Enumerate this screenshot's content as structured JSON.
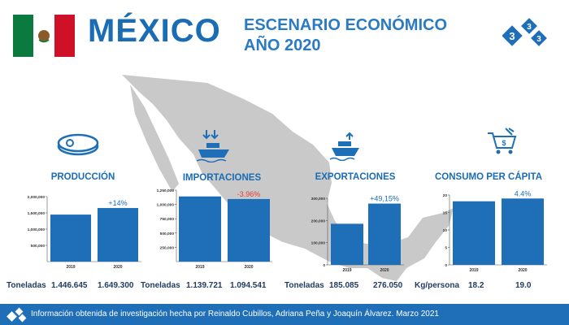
{
  "header": {
    "country": "MÉXICO",
    "subtitle_line1": "ESCENARIO ECONÓMICO",
    "subtitle_line2": "AÑO 2020",
    "logo_digits": [
      "3",
      "3",
      "3"
    ]
  },
  "colors": {
    "accent": "#1a6cb4",
    "bar": "#1f6fb8",
    "negative": "#e53935",
    "map": "#c9c9c9",
    "footer": "#1f6fb8"
  },
  "sections": [
    {
      "title": "PRODUCCIÓN",
      "icon": "meat-icon",
      "unit_label": "Toneladas",
      "values_text": [
        "1.446.645",
        "1.649.300"
      ]
    },
    {
      "title": "IMPORTACIONES",
      "icon": "import-ship-icon",
      "unit_label": "Toneladas",
      "values_text": [
        "1.139.721",
        "1.094.541"
      ]
    },
    {
      "title": "EXPORTACIONES",
      "icon": "export-ship-icon",
      "unit_label": "Toneladas",
      "values_text": [
        "185.085",
        "276.050"
      ]
    },
    {
      "title": "CONSUMO PER CÁPITA",
      "icon": "shopping-cart-icon",
      "unit_label": "Kg/persona",
      "values_text": [
        "18.2",
        "19.0"
      ]
    }
  ],
  "chart_data": [
    {
      "type": "bar",
      "categories": [
        "2019",
        "2020"
      ],
      "values": [
        1446645,
        1649300
      ],
      "ylim": [
        0,
        2000000
      ],
      "yticks": [
        500000,
        1000000,
        1500000,
        2000000
      ],
      "ytick_labels": [
        "500,000",
        "1,000,000",
        "1,500,000",
        "2,000,000"
      ],
      "annotation": "+14%",
      "annotation_color": "#1a6cb4"
    },
    {
      "type": "bar",
      "categories": [
        "2019",
        "2020"
      ],
      "values": [
        1139721,
        1094541
      ],
      "ylim": [
        0,
        1250000
      ],
      "yticks": [
        250000,
        500000,
        750000,
        1000000,
        1250000
      ],
      "ytick_labels": [
        "250,000",
        "500,000",
        "750,000",
        "1,000,000",
        "1,250,000"
      ],
      "annotation": "-3.96%",
      "annotation_color": "#e53935"
    },
    {
      "type": "bar",
      "categories": [
        "2019",
        "2020"
      ],
      "values": [
        185085,
        276050
      ],
      "ylim": [
        0,
        300000
      ],
      "yticks": [
        0,
        100000,
        200000,
        300000
      ],
      "ytick_labels": [
        "0",
        "100,000",
        "200,000",
        "300,000"
      ],
      "annotation": "+49,15%",
      "annotation_color": "#1a6cb4"
    },
    {
      "type": "bar",
      "categories": [
        "2019",
        "2020"
      ],
      "values": [
        18.2,
        19.0
      ],
      "ylim": [
        0,
        20
      ],
      "yticks": [
        0,
        5,
        10,
        15,
        20
      ],
      "ytick_labels": [
        "0",
        "5",
        "10",
        "15",
        "20"
      ],
      "annotation": "4.4%",
      "annotation_color": "#1a6cb4"
    }
  ],
  "footer": {
    "text": "Información obtenida de  investigación hecha por Reinaldo Cubillos,  Adriana Peña  y Joaquín Álvarez. Marzo 2021"
  }
}
